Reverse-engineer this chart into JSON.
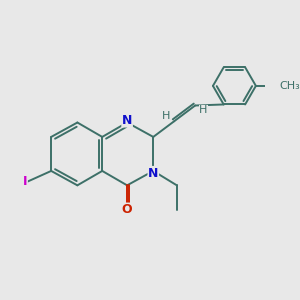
{
  "bg_color": "#e8e8e8",
  "bond_color": "#3d7068",
  "N_color": "#1010cc",
  "O_color": "#cc2200",
  "I_color": "#cc00cc",
  "H_color": "#3d7068",
  "line_width": 1.4,
  "font_size": 8,
  "figsize": [
    3.0,
    3.0
  ],
  "dpi": 100,
  "xlim": [
    0,
    10
  ],
  "ylim": [
    0,
    10
  ]
}
